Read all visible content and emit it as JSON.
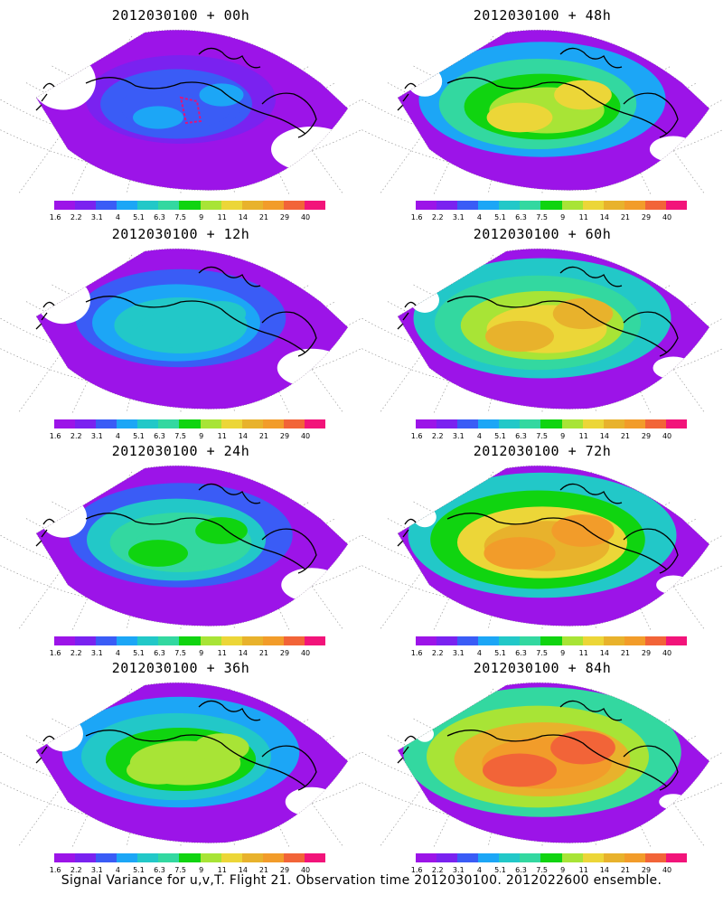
{
  "caption": "Signal Variance for u,v,T. Flight 21. Observation time 2012030100. 2012022600 ensemble.",
  "colorbar": {
    "colors": [
      "#9c14e8",
      "#7a22f0",
      "#3a5cf6",
      "#1ca6f6",
      "#22c8c8",
      "#33d8a0",
      "#10d410",
      "#a8e436",
      "#ecd638",
      "#e8b22c",
      "#f29c2a",
      "#f26438",
      "#f2147a"
    ],
    "labels": [
      "1.6",
      "2.2",
      "3.1",
      "4",
      "5.1",
      "6.3",
      "7.5",
      "9",
      "11",
      "14",
      "21",
      "29",
      "40"
    ]
  },
  "panels": [
    {
      "title": "2012030100 + 00h",
      "col": 0,
      "row": 0,
      "level": 0.2
    },
    {
      "title": "2012030100 + 48h",
      "col": 1,
      "row": 0,
      "level": 0.62
    },
    {
      "title": "2012030100 + 12h",
      "col": 0,
      "row": 1,
      "level": 0.35
    },
    {
      "title": "2012030100 + 60h",
      "col": 1,
      "row": 1,
      "level": 0.7
    },
    {
      "title": "2012030100 + 24h",
      "col": 0,
      "row": 2,
      "level": 0.45
    },
    {
      "title": "2012030100 + 72h",
      "col": 1,
      "row": 2,
      "level": 0.78
    },
    {
      "title": "2012030100 + 36h",
      "col": 0,
      "row": 3,
      "level": 0.55
    },
    {
      "title": "2012030100 + 84h",
      "col": 1,
      "row": 3,
      "level": 0.85
    }
  ]
}
